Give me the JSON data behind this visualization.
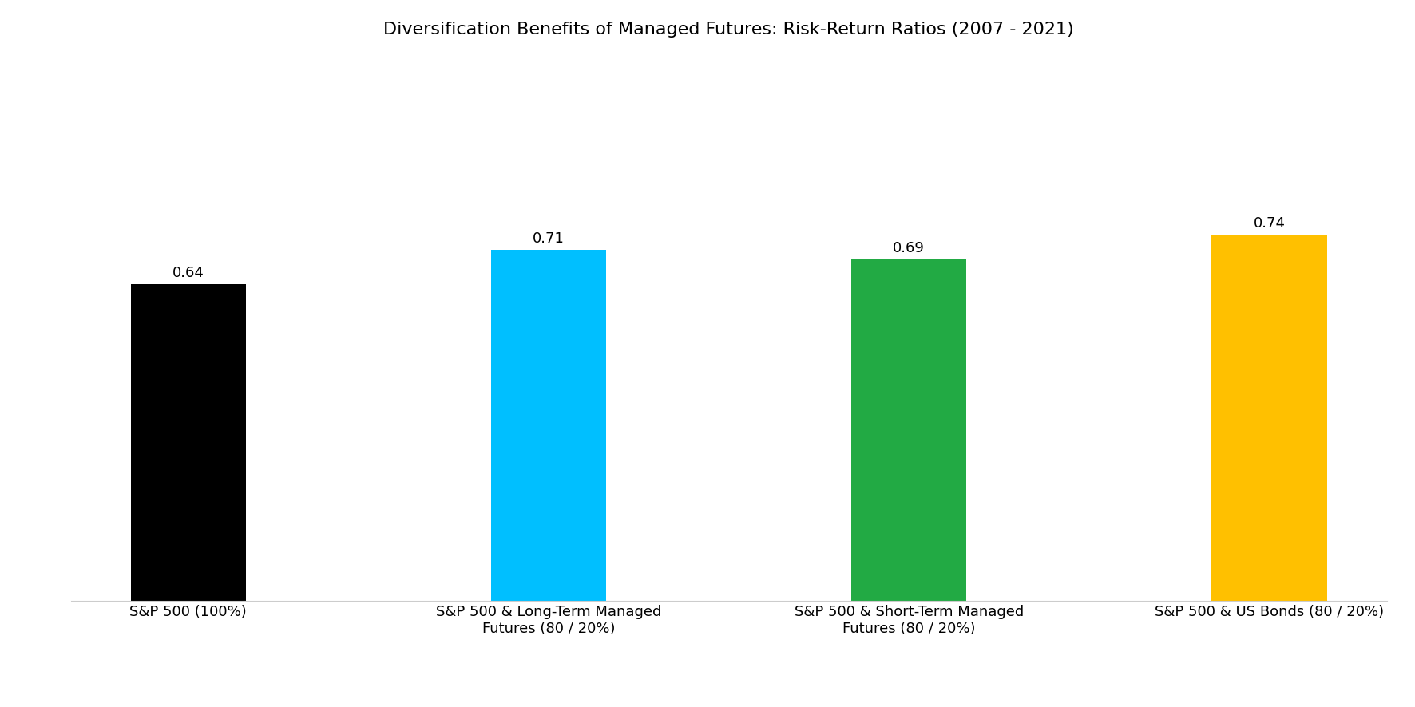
{
  "title": "Diversification Benefits of Managed Futures: Risk-Return Ratios (2007 - 2021)",
  "categories": [
    "S&P 500 (100%)",
    "S&P 500 & Long-Term Managed\nFutures (80 / 20%)",
    "S&P 500 & Short-Term Managed\nFutures (80 / 20%)",
    "S&P 500 & US Bonds (80 / 20%)"
  ],
  "values": [
    0.64,
    0.71,
    0.69,
    0.74
  ],
  "bar_colors": [
    "#000000",
    "#00BFFF",
    "#22AA44",
    "#FFC000"
  ],
  "bar_width": 0.32,
  "ylim": [
    0,
    1.1
  ],
  "title_fontsize": 16,
  "label_fontsize": 13,
  "value_fontsize": 13,
  "background_color": "#ffffff",
  "bottom_spine_color": "#cccccc"
}
